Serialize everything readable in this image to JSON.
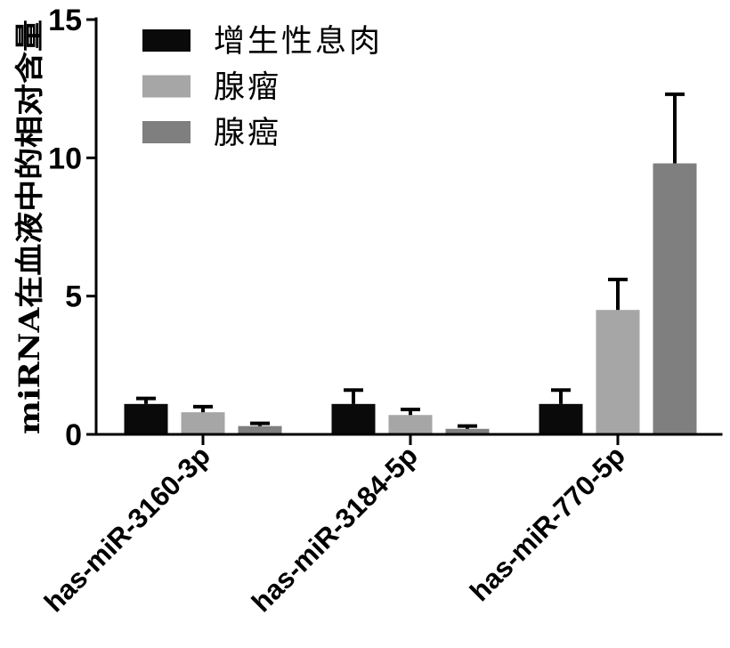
{
  "chart_data": {
    "type": "bar",
    "categories": [
      "has-miR-3160-3p",
      "has-miR-3184-5p",
      "has-miR-770-5p"
    ],
    "series": [
      {
        "name": "增生性息肉",
        "color": "#0a0a0a",
        "values": [
          1.1,
          1.1,
          1.1
        ],
        "errors": [
          0.2,
          0.5,
          0.5
        ]
      },
      {
        "name": "腺瘤",
        "color": "#a6a6a6",
        "values": [
          0.8,
          0.7,
          4.5
        ],
        "errors": [
          0.2,
          0.2,
          1.1
        ]
      },
      {
        "name": "腺癌",
        "color": "#7f7f7f",
        "values": [
          0.3,
          0.2,
          9.8
        ],
        "errors": [
          0.1,
          0.1,
          2.5
        ]
      }
    ],
    "ylabel": "miRNA在血液中的相对含量",
    "ylim": [
      0,
      15
    ],
    "yticks": [
      0,
      5,
      10,
      15
    ],
    "legend": "top-left",
    "grid": false
  }
}
